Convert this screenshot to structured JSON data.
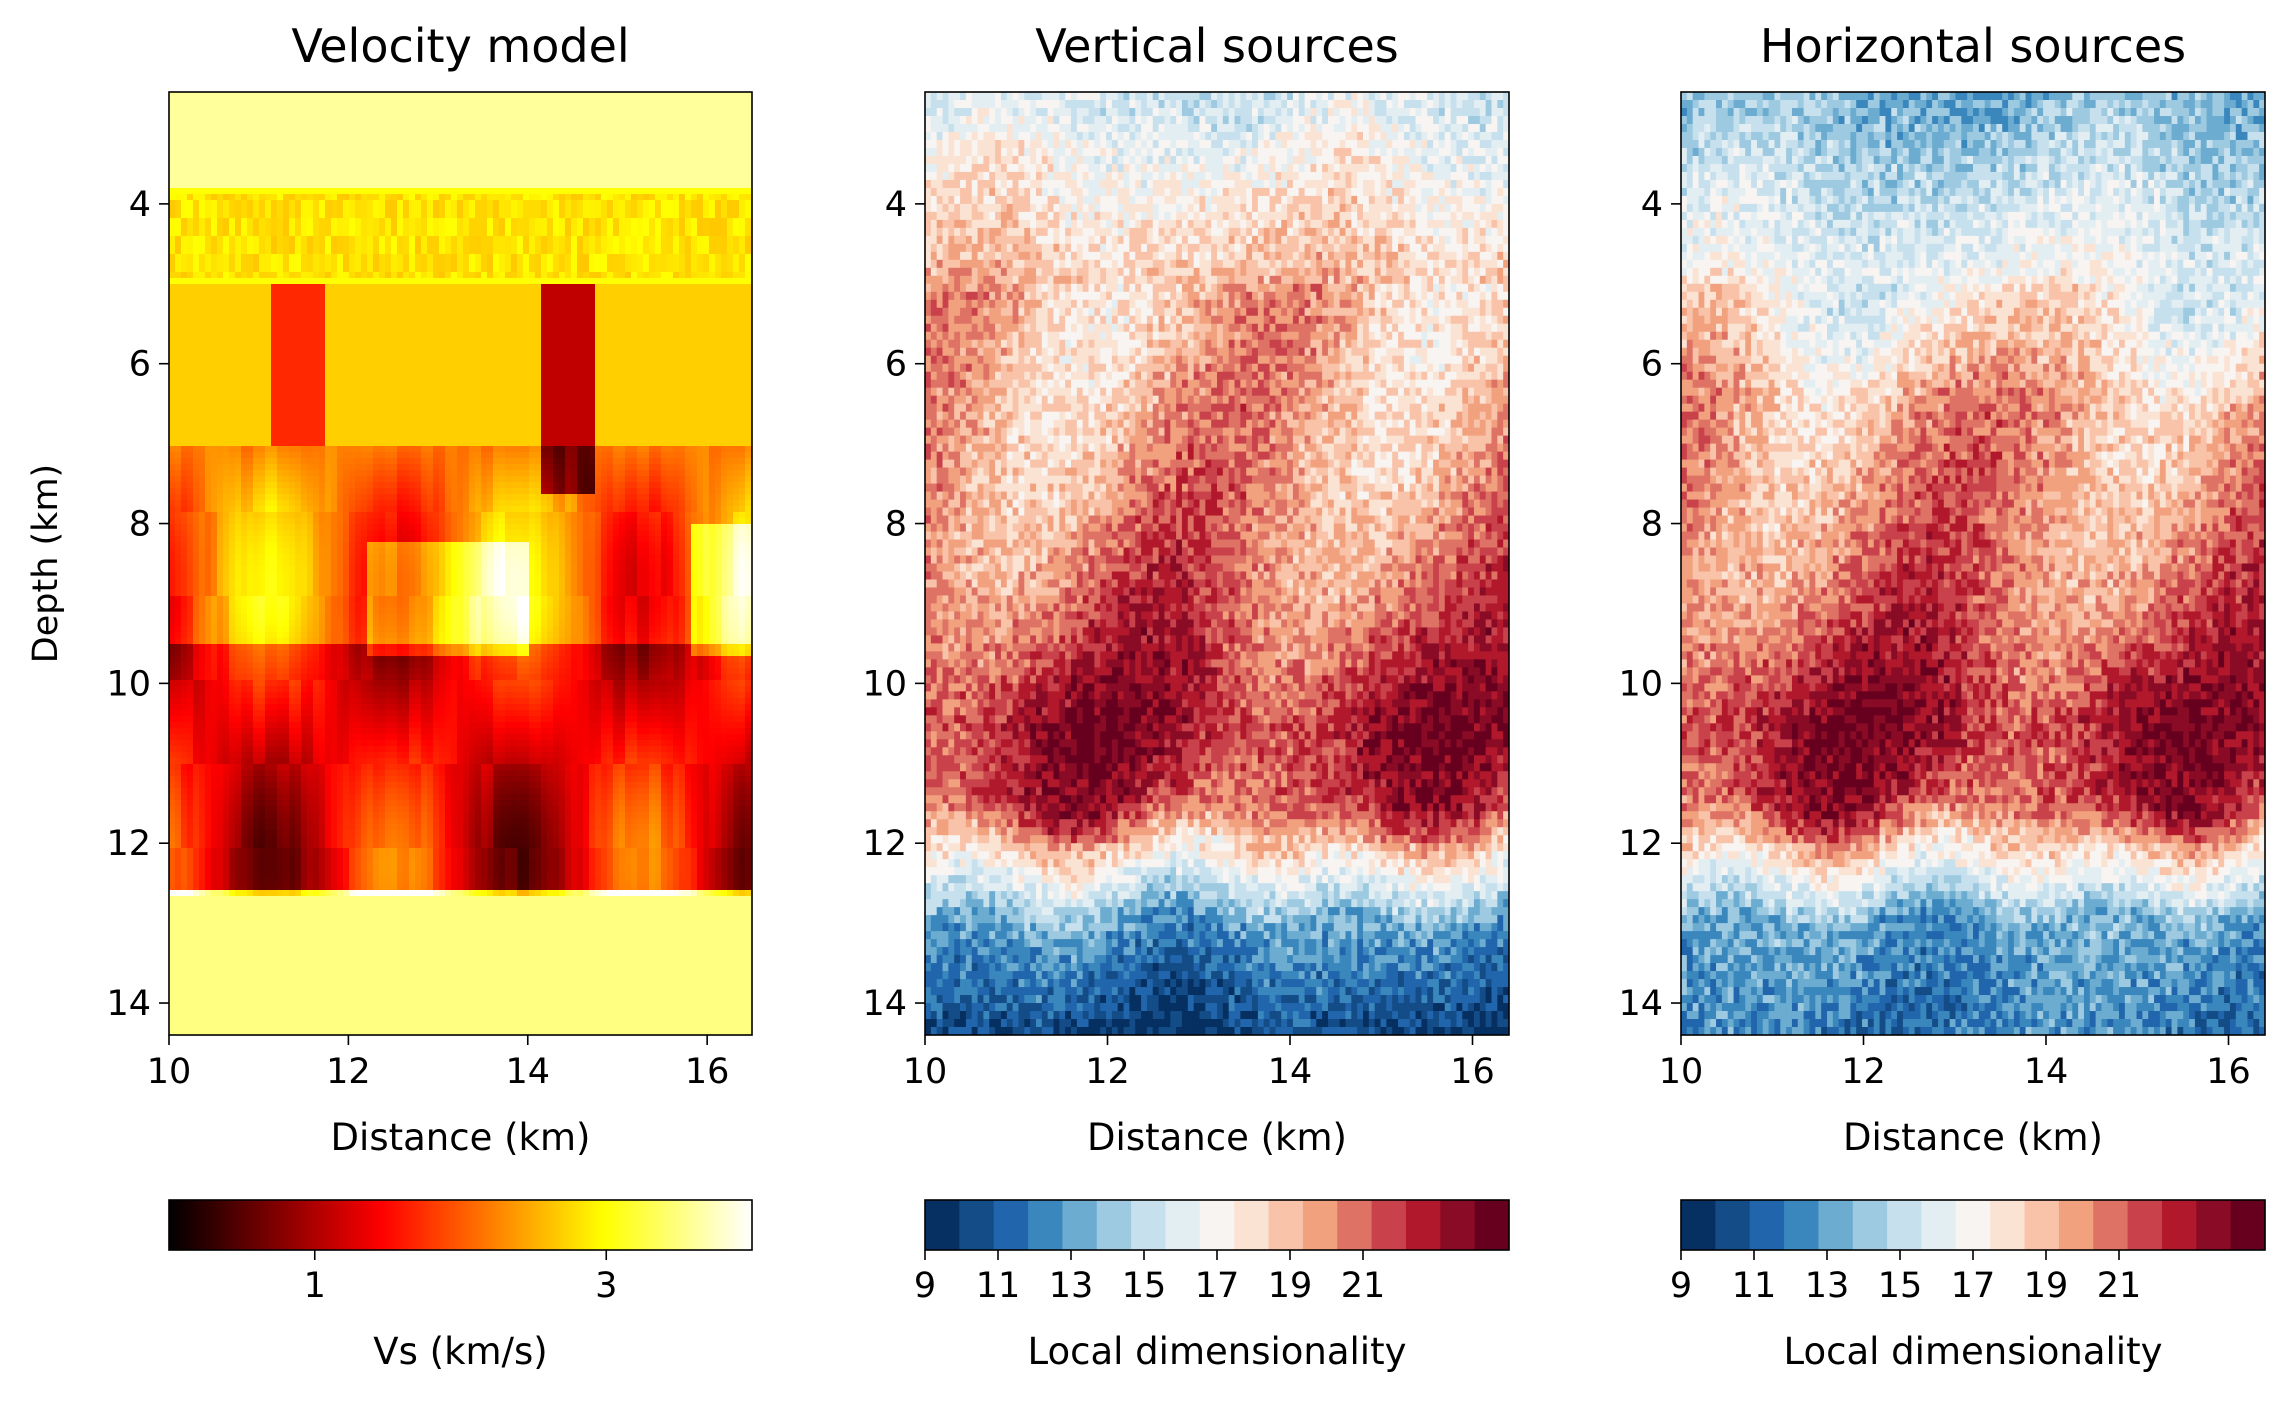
{
  "chart_data": [
    {
      "type": "heatmap",
      "title": "Velocity model",
      "xlabel": "Distance (km)",
      "ylabel": "Depth (km)",
      "xlim": [
        10,
        16.5
      ],
      "ylim": [
        14.4,
        2.6
      ],
      "xticks": [
        "10",
        "12",
        "14",
        "16"
      ],
      "yticks": [
        "4",
        "6",
        "8",
        "10",
        "12",
        "14"
      ],
      "colormap": "hot",
      "colorbar": {
        "label": "Vs (km/s)",
        "range": [
          0,
          4
        ],
        "ticks": [
          "1",
          "3"
        ],
        "tick_values": [
          1,
          3
        ]
      },
      "layers": [
        {
          "depth_top": 2.6,
          "depth_bottom": 3.8,
          "vs": 3.6
        },
        {
          "depth_top": 3.8,
          "depth_bottom": 5.0,
          "vs": 3.0
        },
        {
          "depth_top": 5.0,
          "depth_bottom": 7.0,
          "vs": 2.7
        },
        {
          "depth_top": 7.0,
          "depth_bottom": 9.5,
          "vs": 2.2
        },
        {
          "depth_top": 9.5,
          "depth_bottom": 12.5,
          "vs": 1.4
        },
        {
          "depth_top": 12.5,
          "depth_bottom": 14.4,
          "vs": 3.5
        }
      ]
    },
    {
      "type": "heatmap",
      "title": "Vertical sources",
      "xlabel": "Distance (km)",
      "ylabel": "",
      "xlim": [
        10,
        16.4
      ],
      "ylim": [
        14.4,
        2.6
      ],
      "xticks": [
        "10",
        "12",
        "14",
        "16"
      ],
      "yticks": [
        "4",
        "6",
        "8",
        "10",
        "12",
        "14"
      ],
      "colormap": "RdBu_r",
      "colorbar": {
        "label": "Local dimensionality",
        "range": [
          9,
          25
        ],
        "ticks": [
          "9",
          "11",
          "13",
          "15",
          "17",
          "19",
          "21"
        ],
        "tick_values": [
          9,
          11,
          13,
          15,
          17,
          19,
          21
        ]
      },
      "depth_profile": [
        {
          "depth": 2.6,
          "value": 15.5
        },
        {
          "depth": 3.5,
          "value": 17.0
        },
        {
          "depth": 5.0,
          "value": 19.0
        },
        {
          "depth": 7.0,
          "value": 19.5
        },
        {
          "depth": 8.5,
          "value": 20.5
        },
        {
          "depth": 9.5,
          "value": 21.5
        },
        {
          "depth": 10.5,
          "value": 23.0
        },
        {
          "depth": 11.5,
          "value": 22.0
        },
        {
          "depth": 12.3,
          "value": 17.0
        },
        {
          "depth": 13.0,
          "value": 13.0
        },
        {
          "depth": 14.4,
          "value": 10.0
        }
      ]
    },
    {
      "type": "heatmap",
      "title": "Horizontal sources",
      "xlabel": "Distance (km)",
      "ylabel": "",
      "xlim": [
        10,
        16.4
      ],
      "ylim": [
        14.4,
        2.6
      ],
      "xticks": [
        "10",
        "12",
        "14",
        "16"
      ],
      "yticks": [
        "4",
        "6",
        "8",
        "10",
        "12",
        "14"
      ],
      "colormap": "RdBu_r",
      "colorbar": {
        "label": "Local dimensionality",
        "range": [
          9,
          25
        ],
        "ticks": [
          "9",
          "11",
          "13",
          "15",
          "17",
          "19",
          "21"
        ],
        "tick_values": [
          9,
          11,
          13,
          15,
          17,
          19,
          21
        ]
      },
      "depth_profile": [
        {
          "depth": 2.6,
          "value": 13.5
        },
        {
          "depth": 4.0,
          "value": 15.5
        },
        {
          "depth": 5.5,
          "value": 17.5
        },
        {
          "depth": 6.5,
          "value": 19.5
        },
        {
          "depth": 8.5,
          "value": 20.5
        },
        {
          "depth": 9.5,
          "value": 21.5
        },
        {
          "depth": 10.5,
          "value": 23.0
        },
        {
          "depth": 11.5,
          "value": 22.0
        },
        {
          "depth": 12.3,
          "value": 17.0
        },
        {
          "depth": 13.0,
          "value": 13.0
        },
        {
          "depth": 14.4,
          "value": 12.0
        }
      ]
    }
  ]
}
